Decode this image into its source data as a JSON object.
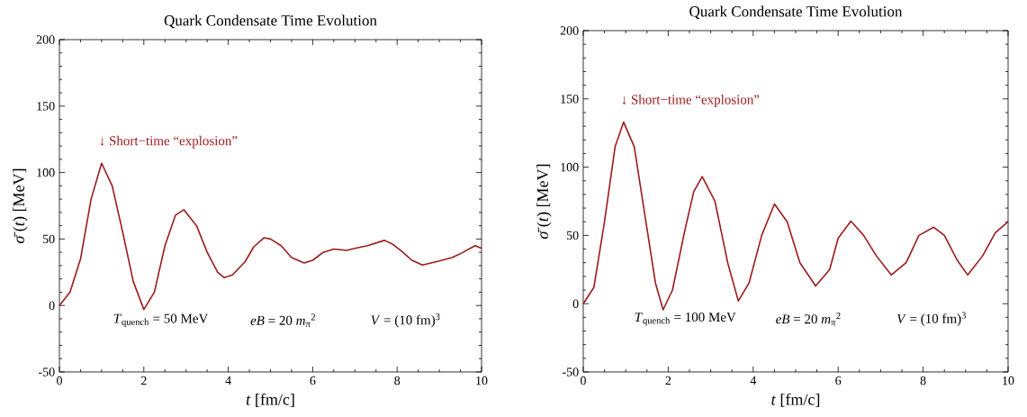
{
  "chart_data": [
    {
      "type": "line",
      "title": "Quark Condensate Time Evolution",
      "xlabel": "*t* [fm/c]",
      "ylabel": "*σ̄*(*t*) [MeV]",
      "xlim": [
        0,
        10
      ],
      "ylim": [
        -50,
        200
      ],
      "xticks": [
        0,
        2,
        4,
        6,
        8,
        10
      ],
      "yticks": [
        -50,
        0,
        50,
        100,
        150,
        200
      ],
      "series": [
        {
          "color": "#9b1b1b",
          "x": [
            0,
            0.25,
            0.5,
            0.75,
            1.0,
            1.25,
            1.5,
            1.75,
            2.0,
            2.25,
            2.5,
            2.75,
            2.95,
            3.25,
            3.5,
            3.75,
            3.9,
            4.1,
            4.4,
            4.6,
            4.85,
            5.0,
            5.25,
            5.5,
            5.8,
            6.0,
            6.25,
            6.5,
            6.8,
            7.0,
            7.3,
            7.7,
            7.9,
            8.1,
            8.35,
            8.6,
            9.0,
            9.3,
            9.5,
            9.85,
            10
          ],
          "values": [
            0,
            10,
            35,
            80,
            107,
            90,
            55,
            18,
            -3,
            10,
            45,
            68,
            72,
            60,
            40,
            25,
            21,
            23,
            33,
            44,
            51,
            50,
            45,
            36,
            32,
            34,
            40,
            42.5,
            41.5,
            43,
            45,
            49,
            46,
            41,
            34,
            30.5,
            33.5,
            36,
            39,
            45,
            43
          ]
        }
      ],
      "annotations": [
        {
          "text": "↓ Short−time “explosion”",
          "x": 1.0,
          "y": 107
        },
        "*T*$_{quench}$ = 50 MeV",
        "*eB* = 20 *m*$_{π}$$^{2}$",
        "*V* = (10 fm)$^{3}$"
      ]
    },
    {
      "type": "line",
      "title": "Quark Condensate Time Evolution",
      "xlabel": "*t* [fm/c]",
      "ylabel": "*σ̄*(*t*) [MeV]",
      "xlim": [
        0,
        10
      ],
      "ylim": [
        -50,
        200
      ],
      "xticks": [
        0,
        2,
        4,
        6,
        8,
        10
      ],
      "yticks": [
        -50,
        0,
        50,
        100,
        150,
        200
      ],
      "series": [
        {
          "color": "#9b1b1b",
          "x": [
            0,
            0.25,
            0.5,
            0.75,
            0.95,
            1.2,
            1.5,
            1.7,
            1.88,
            2.1,
            2.4,
            2.6,
            2.8,
            3.1,
            3.4,
            3.65,
            3.9,
            4.2,
            4.5,
            4.8,
            5.1,
            5.47,
            5.8,
            6.0,
            6.3,
            6.6,
            6.9,
            7.25,
            7.6,
            7.9,
            8.25,
            8.5,
            8.8,
            9.05,
            9.4,
            9.7,
            10
          ],
          "values": [
            0,
            12,
            60,
            115,
            133,
            115,
            55,
            15,
            -4.5,
            10,
            55,
            82,
            93,
            75,
            30,
            2,
            15,
            50,
            73,
            60,
            30,
            13,
            25,
            48,
            60.5,
            50,
            35,
            21,
            30,
            50,
            56,
            50,
            32,
            21,
            35,
            52,
            60
          ]
        }
      ],
      "annotations": [
        {
          "text": "↓ Short−time “explosion”",
          "x": 0.95,
          "y": 133
        },
        "*T*$_{quench}$ = 100 MeV",
        "*eB* = 20 *m*$_{π}$$^{2}$",
        "*V* = (10 fm)$^{3}$"
      ]
    }
  ]
}
